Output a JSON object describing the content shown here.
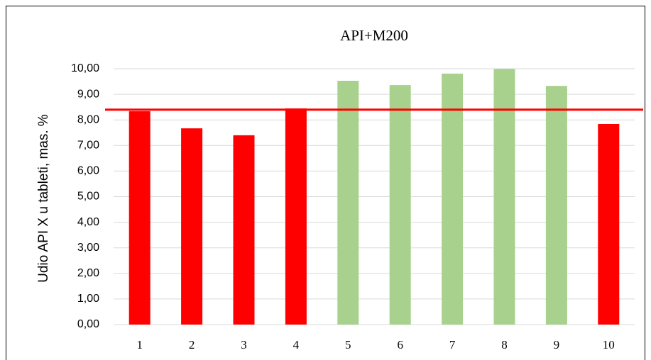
{
  "chart_data": {
    "type": "bar",
    "title": "API+M200",
    "ylabel": "Udio API X u tableti, mas. %",
    "categories": [
      "1",
      "2",
      "3",
      "4",
      "5",
      "6",
      "7",
      "8",
      "9",
      "10"
    ],
    "values": [
      8.34,
      7.67,
      7.4,
      8.45,
      9.53,
      9.36,
      9.81,
      9.99,
      9.33,
      7.84
    ],
    "colors": [
      "#ff0000",
      "#ff0000",
      "#ff0000",
      "#ff0000",
      "#a9d18e",
      "#a9d18e",
      "#a9d18e",
      "#a9d18e",
      "#a9d18e",
      "#ff0000"
    ],
    "reference_line": {
      "value": 8.4,
      "color": "#ff0000"
    },
    "ylim": [
      0,
      10
    ],
    "yticks": [
      {
        "value": 0,
        "label": "0,00"
      },
      {
        "value": 1,
        "label": "1,00"
      },
      {
        "value": 2,
        "label": "2,00"
      },
      {
        "value": 3,
        "label": "3,00"
      },
      {
        "value": 4,
        "label": "4,00"
      },
      {
        "value": 5,
        "label": "5,00"
      },
      {
        "value": 6,
        "label": "6,00"
      },
      {
        "value": 7,
        "label": "7,00"
      },
      {
        "value": 8,
        "label": "8,00"
      },
      {
        "value": 9,
        "label": "9,00"
      },
      {
        "value": 10,
        "label": "10,00"
      }
    ],
    "grid": true
  }
}
